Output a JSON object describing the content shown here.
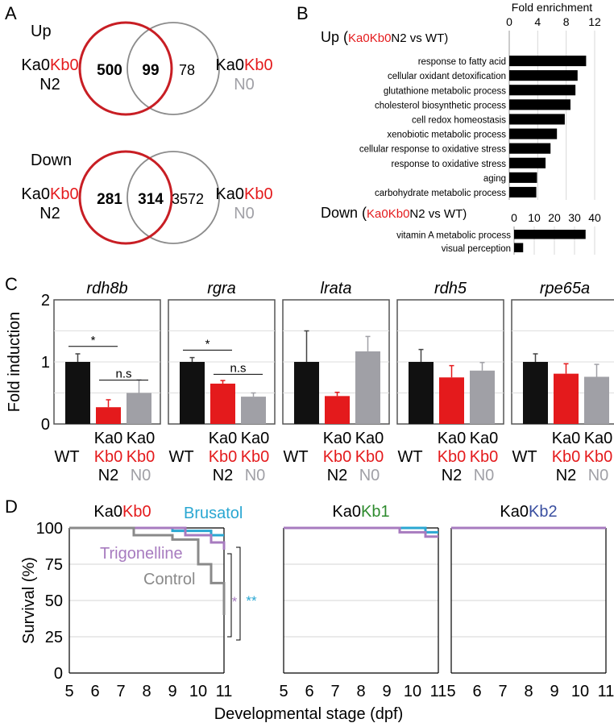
{
  "panels": {
    "a": "A",
    "b": "B",
    "c": "C",
    "d": "D"
  },
  "venn": [
    {
      "title": "Up",
      "left_label": [
        "Ka0",
        "Kb0",
        "N2"
      ],
      "right_label": [
        "Ka0",
        "Kb0",
        "N0"
      ],
      "left_only": "500",
      "overlap": "99",
      "right_only": "78"
    },
    {
      "title": "Down",
      "left_label": [
        "Ka0",
        "Kb0",
        "N2"
      ],
      "right_label": [
        "Ka0",
        "Kb0",
        "N0"
      ],
      "left_only": "281",
      "overlap": "314",
      "right_only": "3572"
    }
  ],
  "colors": {
    "black": "#111111",
    "red": "#e41a1c",
    "gray": "#a0a0a6",
    "venn_red": "#c81e24",
    "venn_gray": "#8c8c8c",
    "teal": "#2aa7d2",
    "purple": "#a77bbf",
    "control": "#8a8a8a",
    "green": "#2e8b2e",
    "blue": "#3a4fa0"
  },
  "chart_data": [
    {
      "type": "bar",
      "orientation": "horizontal",
      "title_parts": [
        "Up (",
        "Ka0",
        "Kb0",
        "N2 vs WT)"
      ],
      "xlabel": "Fold enrichment",
      "xlim": [
        0,
        12
      ],
      "xticks": [
        0,
        4,
        8,
        12
      ],
      "categories": [
        "response to fatty acid",
        "cellular oxidant detoxification",
        "glutathione metabolic process",
        "cholesterol biosynthetic process",
        "cell redox homeostasis",
        "xenobiotic metabolic process",
        "cellular response to oxidative stress",
        "response to oxidative stress",
        "aging",
        "carbohydrate metabolic process"
      ],
      "values": [
        10.8,
        9.6,
        9.3,
        8.6,
        7.8,
        6.7,
        5.8,
        5.1,
        3.9,
        3.8
      ]
    },
    {
      "type": "bar",
      "orientation": "horizontal",
      "title_parts": [
        "Down (",
        "Ka0",
        "Kb0",
        "N2 vs WT)"
      ],
      "xlim": [
        0,
        40
      ],
      "xticks": [
        0,
        10,
        20,
        30,
        40
      ],
      "categories": [
        "vitamin A metabolic process",
        "visual perception"
      ],
      "values": [
        35.5,
        4.5
      ]
    },
    {
      "type": "bar",
      "ylabel": "Fold induction",
      "ylim": [
        0,
        2
      ],
      "yticks": [
        0,
        1,
        2
      ],
      "groups": [
        [
          "WT"
        ],
        [
          "Ka0",
          "Kb0",
          "N2"
        ],
        [
          "Ka0",
          "Kb0",
          "N0"
        ]
      ],
      "genes": [
        {
          "name": "rdh8b",
          "values": [
            1.0,
            0.27,
            0.5
          ],
          "errors": [
            0.13,
            0.12,
            0.21
          ],
          "sig": [
            "*",
            "n.s"
          ]
        },
        {
          "name": "rgra",
          "values": [
            1.0,
            0.65,
            0.44
          ],
          "errors": [
            0.07,
            0.05,
            0.06
          ],
          "sig": [
            "*",
            "n.s"
          ]
        },
        {
          "name": "lrata",
          "values": [
            1.0,
            0.45,
            1.17
          ],
          "errors": [
            0.5,
            0.06,
            0.24
          ],
          "sig": []
        },
        {
          "name": "rdh5",
          "values": [
            1.0,
            0.75,
            0.86
          ],
          "errors": [
            0.2,
            0.19,
            0.13
          ],
          "sig": []
        },
        {
          "name": "rpe65a",
          "values": [
            1.0,
            0.81,
            0.76
          ],
          "errors": [
            0.13,
            0.16,
            0.2
          ],
          "sig": []
        }
      ]
    },
    {
      "type": "line",
      "step": true,
      "ylabel": "Survival (%)",
      "xlabel": "Developmental stage (dpf)",
      "xlim": [
        5,
        11
      ],
      "ylim": [
        0,
        100
      ],
      "xticks": [
        5,
        6,
        7,
        8,
        9,
        10,
        11
      ],
      "yticks": [
        0,
        25,
        50,
        75,
        100
      ],
      "panels": [
        {
          "title": [
            "Ka0",
            "Kb0"
          ],
          "series": [
            {
              "name": "Brusatol",
              "color": "#2aa7d2",
              "x": [
                5,
                9,
                9,
                10.5,
                10.5,
                11
              ],
              "y": [
                100,
                100,
                98,
                98,
                95,
                95
              ]
            },
            {
              "name": "Trigonelline",
              "color": "#a77bbf",
              "x": [
                5,
                9.5,
                9.5,
                10.5,
                10.5,
                11,
                11
              ],
              "y": [
                100,
                100,
                95,
                95,
                90,
                90,
                85
              ]
            },
            {
              "name": "Control",
              "color": "#8a8a8a",
              "x": [
                5,
                7.5,
                7.5,
                9,
                9,
                10,
                10,
                10.5,
                10.5,
                11,
                11
              ],
              "y": [
                100,
                100,
                95,
                95,
                92,
                92,
                75,
                75,
                62,
                62,
                40
              ]
            }
          ],
          "labels": [
            "Brusatol",
            "Trigonelline",
            "Control"
          ],
          "sig": [
            "*",
            "**"
          ]
        },
        {
          "title": [
            "Ka0",
            "Kb1"
          ],
          "series": [
            {
              "color": "#2aa7d2",
              "x": [
                5,
                10.5,
                10.5,
                11
              ],
              "y": [
                100,
                100,
                97,
                97
              ]
            },
            {
              "color": "#a77bbf",
              "x": [
                5,
                9.5,
                9.5,
                10.5,
                10.5,
                11
              ],
              "y": [
                100,
                100,
                97,
                97,
                94,
                94
              ]
            }
          ]
        },
        {
          "title": [
            "Ka0",
            "Kb2"
          ],
          "series": [
            {
              "color": "#a77bbf",
              "x": [
                5,
                11
              ],
              "y": [
                100,
                100
              ]
            }
          ]
        }
      ]
    }
  ]
}
